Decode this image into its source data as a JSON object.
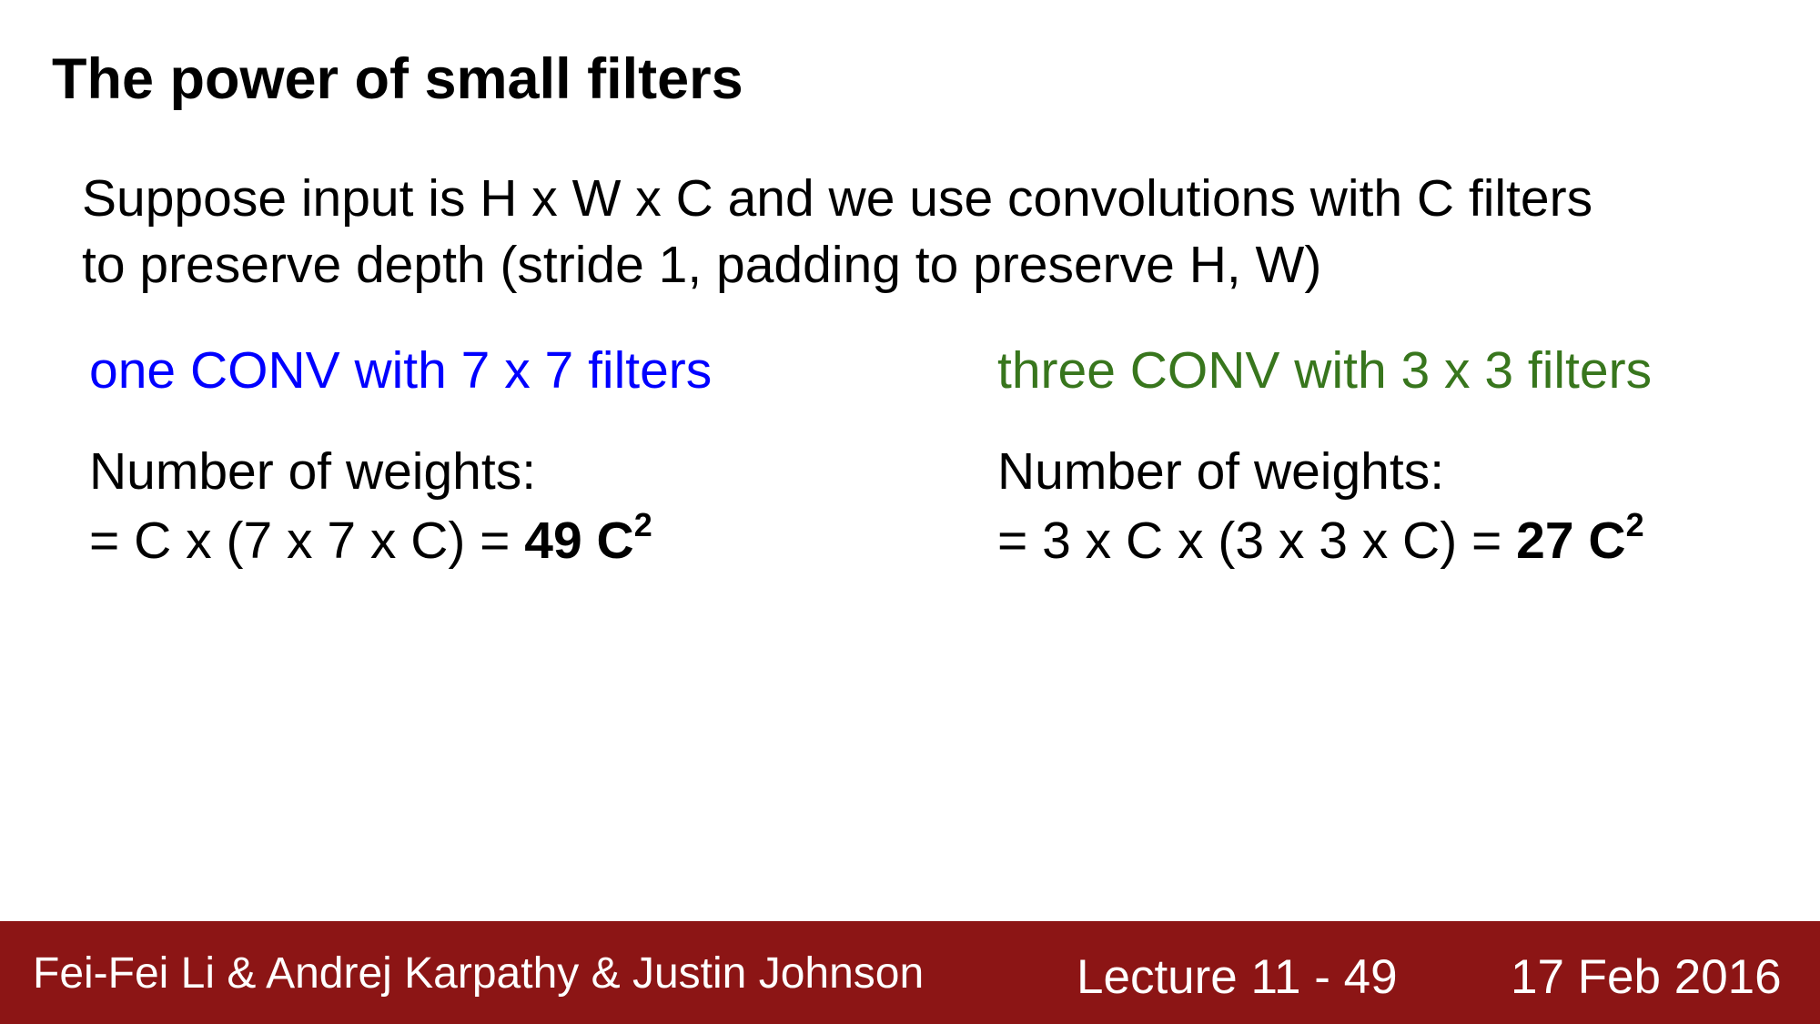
{
  "slide": {
    "title": "The power of small filters",
    "intro": {
      "line1": "Suppose input is H x W x C and we use convolutions with C filters",
      "line2": "to preserve depth (stride 1, padding to preserve H, W)"
    },
    "left": {
      "heading": "one CONV with 7 x 7 filters",
      "heading_color": "#0000ff",
      "weights_label": "Number of weights:",
      "formula": "= C x (7 x 7 x C) = ",
      "result": "49 C",
      "exponent": "2"
    },
    "right": {
      "heading": "three CONV with 3 x 3 filters",
      "heading_color": "#38761d",
      "weights_label": "Number of weights:",
      "formula": "= 3 x C x (3 x 3 x C) = ",
      "result": "27 C",
      "exponent": "2"
    }
  },
  "footer": {
    "authors": "Fei-Fei Li & Andrej Karpathy & Justin Johnson",
    "lecture": "Lecture 11 - 49",
    "date": "17 Feb 2016",
    "background_color": "#8c1515"
  }
}
